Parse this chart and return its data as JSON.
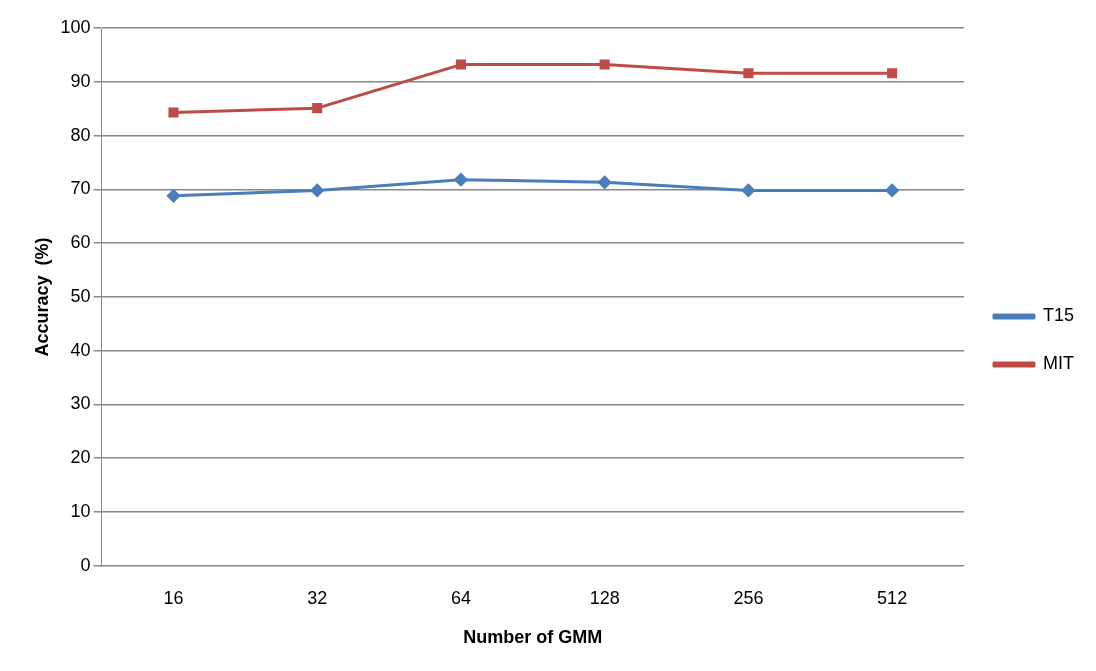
{
  "chart_data": {
    "type": "line",
    "xlabel": "Number of GMM",
    "ylabel": "Accuracy  (%)",
    "categories": [
      "16",
      "32",
      "64",
      "128",
      "256",
      "512"
    ],
    "series": [
      {
        "name": "T15",
        "color": "#4a7ebb",
        "marker": "diamond",
        "values": [
          68.8,
          69.8,
          71.8,
          71.3,
          69.8,
          69.8
        ]
      },
      {
        "name": "MIT",
        "color": "#be4b48",
        "marker": "square",
        "values": [
          84.3,
          85.1,
          93.2,
          93.2,
          91.6,
          91.6
        ]
      }
    ],
    "ylim": [
      0,
      100
    ],
    "yticks": [
      0,
      10,
      20,
      30,
      40,
      50,
      60,
      70,
      80,
      90,
      100
    ],
    "grid": "y",
    "legend": "right",
    "line_style": "solid"
  }
}
